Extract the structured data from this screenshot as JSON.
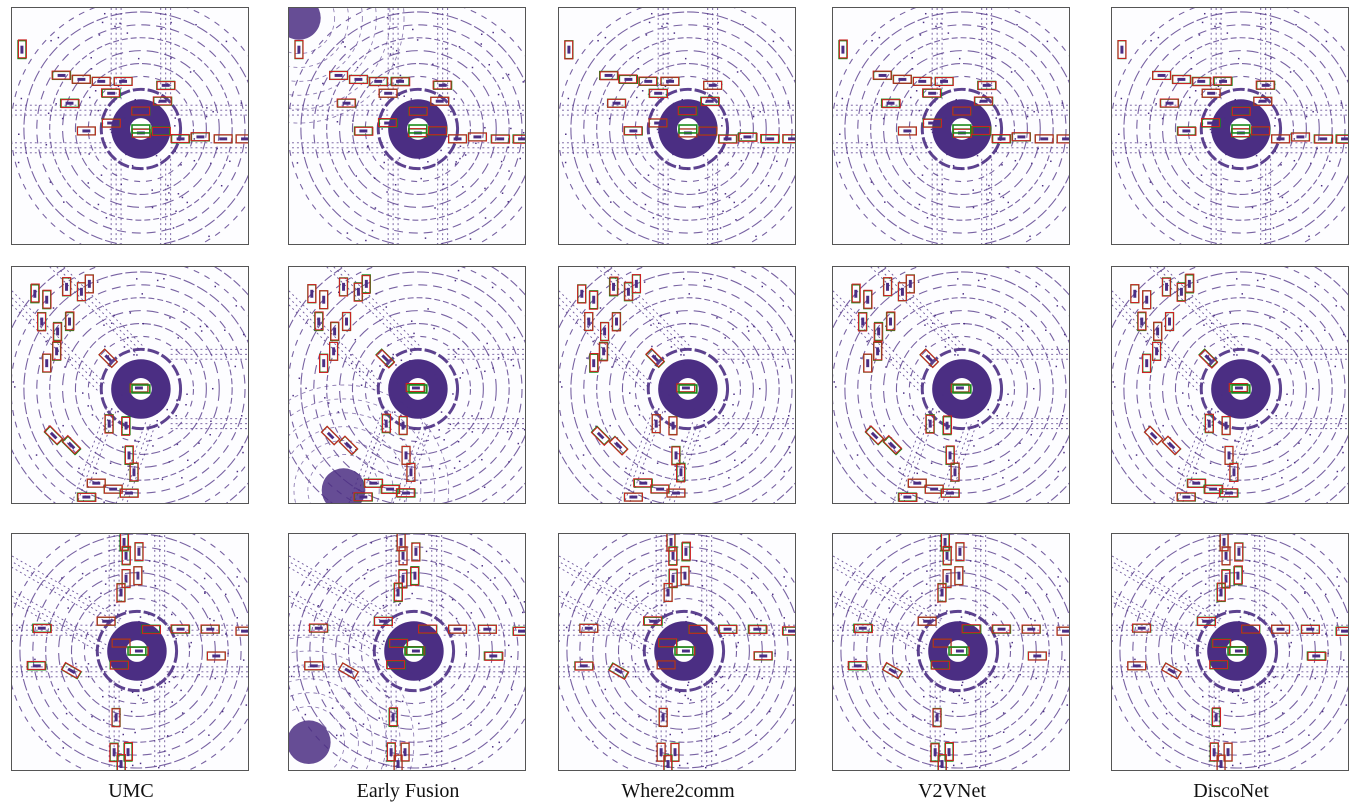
{
  "columns": [
    "UMC",
    "Early Fusion",
    "Where2comm",
    "V2VNet",
    "DiscoNet"
  ],
  "colors": {
    "lidar_points": "#4b2e83",
    "ground_truth_box": "#1a8a1a",
    "prediction_box": "#cc2222",
    "panel_border": "#555555"
  }
}
